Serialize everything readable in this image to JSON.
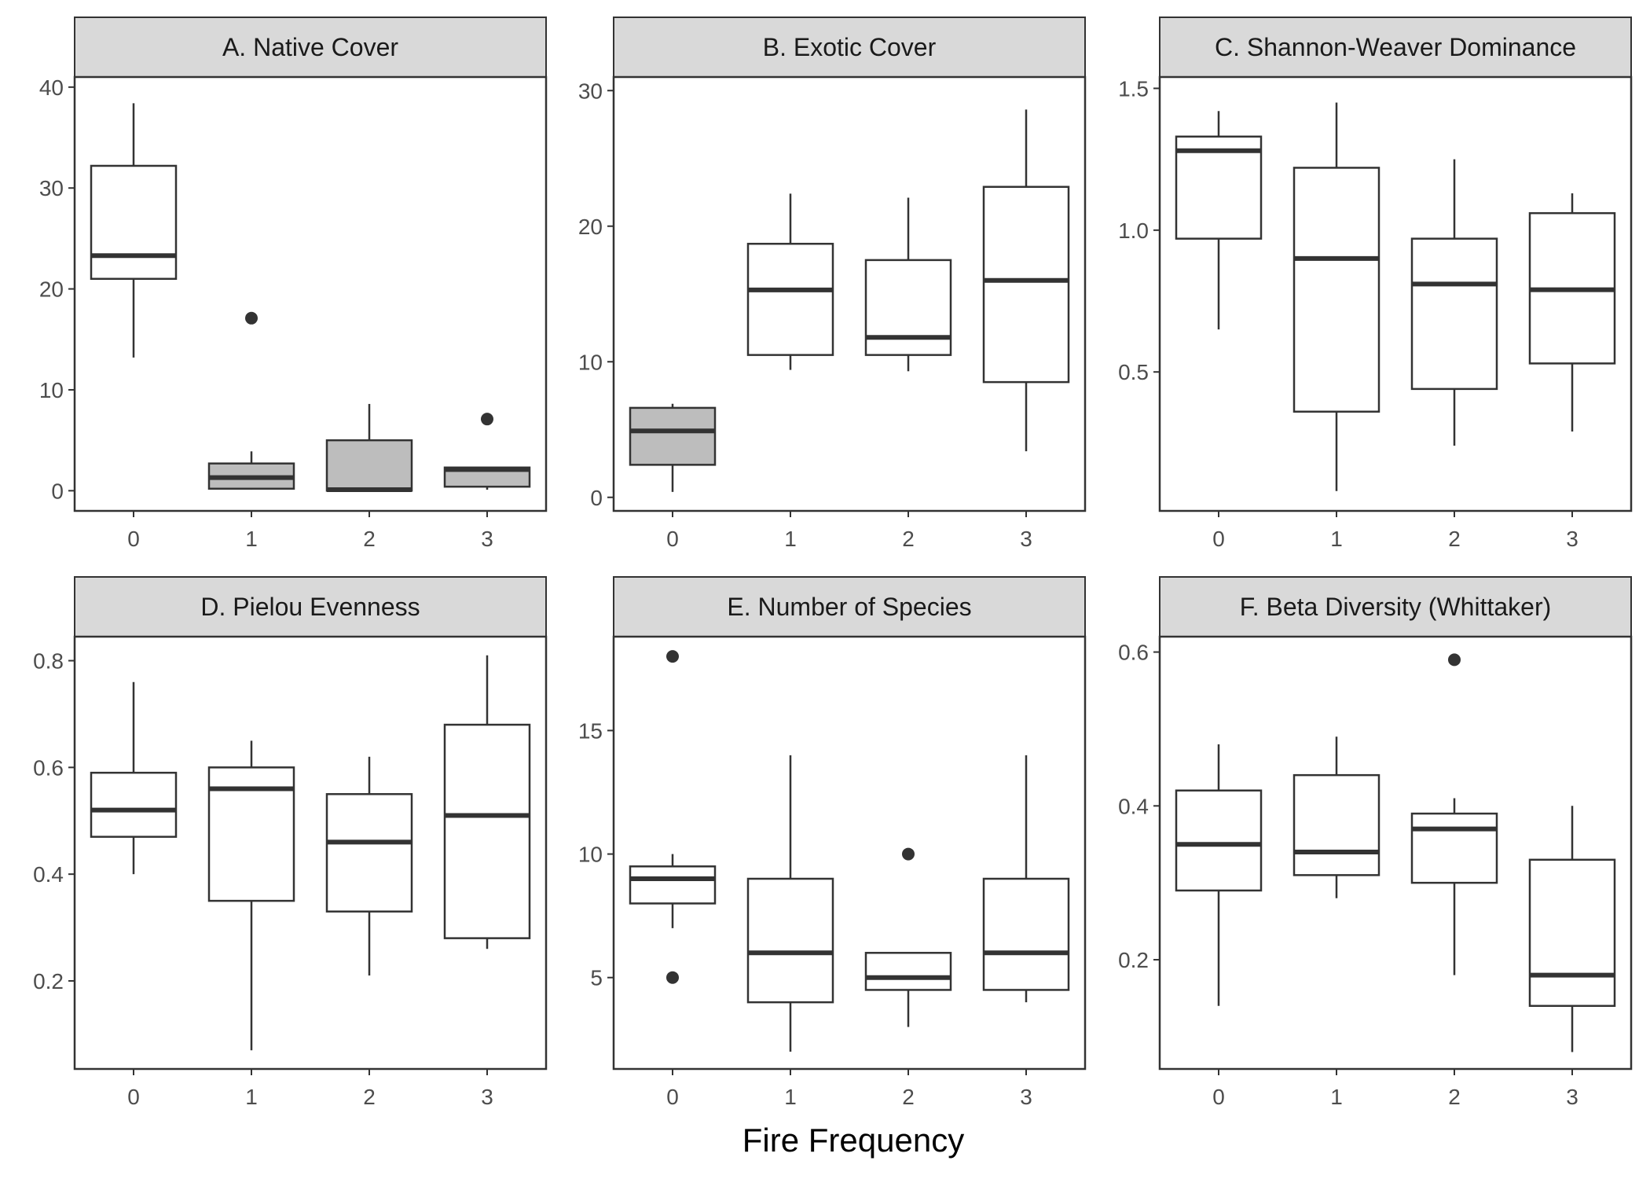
{
  "chart_data": {
    "type": "boxplot",
    "xlabel": "Fire Frequency",
    "ylabel": "",
    "categories": [
      "0",
      "1",
      "2",
      "3"
    ],
    "panels": [
      {
        "title": "A. Native Cover",
        "ylim": [
          -2,
          41
        ],
        "yticks": [
          0,
          10,
          20,
          30,
          40
        ],
        "ytick_labels": [
          "0",
          "10",
          "20",
          "30",
          "40"
        ],
        "boxes": [
          {
            "x": "0",
            "min": 13.2,
            "q1": 21.0,
            "median": 23.3,
            "q3": 32.2,
            "max": 38.4,
            "outliers": [],
            "fill": "#ffffff"
          },
          {
            "x": "1",
            "min": 0.1,
            "q1": 0.2,
            "median": 1.3,
            "q3": 2.7,
            "max": 3.9,
            "outliers": [
              17.1
            ],
            "fill": "#bdbdbd"
          },
          {
            "x": "2",
            "min": 0.0,
            "q1": 0.0,
            "median": 0.1,
            "q3": 5.0,
            "max": 8.6,
            "outliers": [],
            "fill": "#bdbdbd"
          },
          {
            "x": "3",
            "min": 0.1,
            "q1": 0.4,
            "median": 2.1,
            "q3": 2.3,
            "max": 2.3,
            "outliers": [
              7.1
            ],
            "fill": "#bdbdbd"
          }
        ]
      },
      {
        "title": "B. Exotic Cover",
        "ylim": [
          -1,
          31
        ],
        "yticks": [
          0,
          10,
          20,
          30
        ],
        "ytick_labels": [
          "0",
          "10",
          "20",
          "30"
        ],
        "boxes": [
          {
            "x": "0",
            "min": 0.4,
            "q1": 2.4,
            "median": 4.9,
            "q3": 6.6,
            "max": 6.9,
            "outliers": [],
            "fill": "#bdbdbd"
          },
          {
            "x": "1",
            "min": 9.4,
            "q1": 10.5,
            "median": 15.3,
            "q3": 18.7,
            "max": 22.4,
            "outliers": [],
            "fill": "#ffffff"
          },
          {
            "x": "2",
            "min": 9.3,
            "q1": 10.5,
            "median": 11.8,
            "q3": 17.5,
            "max": 22.1,
            "outliers": [],
            "fill": "#ffffff"
          },
          {
            "x": "3",
            "min": 3.4,
            "q1": 8.5,
            "median": 16.0,
            "q3": 22.9,
            "max": 28.6,
            "outliers": [],
            "fill": "#ffffff"
          }
        ]
      },
      {
        "title": "C. Shannon-Weaver Dominance",
        "ylim": [
          0.01,
          1.54
        ],
        "yticks": [
          0.5,
          1.0,
          1.5
        ],
        "ytick_labels": [
          "0.5",
          "1.0",
          "1.5"
        ],
        "boxes": [
          {
            "x": "0",
            "min": 0.65,
            "q1": 0.97,
            "median": 1.28,
            "q3": 1.33,
            "max": 1.42,
            "outliers": [],
            "fill": "#ffffff"
          },
          {
            "x": "1",
            "min": 0.08,
            "q1": 0.36,
            "median": 0.9,
            "q3": 1.22,
            "max": 1.45,
            "outliers": [],
            "fill": "#ffffff"
          },
          {
            "x": "2",
            "min": 0.24,
            "q1": 0.44,
            "median": 0.81,
            "q3": 0.97,
            "max": 1.25,
            "outliers": [],
            "fill": "#ffffff"
          },
          {
            "x": "3",
            "min": 0.29,
            "q1": 0.53,
            "median": 0.79,
            "q3": 1.06,
            "max": 1.13,
            "outliers": [],
            "fill": "#ffffff"
          }
        ]
      },
      {
        "title": "D. Pielou Evenness",
        "ylim": [
          0.035,
          0.845
        ],
        "yticks": [
          0.2,
          0.4,
          0.6,
          0.8
        ],
        "ytick_labels": [
          "0.2",
          "0.4",
          "0.6",
          "0.8"
        ],
        "boxes": [
          {
            "x": "0",
            "min": 0.4,
            "q1": 0.47,
            "median": 0.52,
            "q3": 0.59,
            "max": 0.76,
            "outliers": [],
            "fill": "#ffffff"
          },
          {
            "x": "1",
            "min": 0.07,
            "q1": 0.35,
            "median": 0.56,
            "q3": 0.6,
            "max": 0.65,
            "outliers": [],
            "fill": "#ffffff"
          },
          {
            "x": "2",
            "min": 0.21,
            "q1": 0.33,
            "median": 0.46,
            "q3": 0.55,
            "max": 0.62,
            "outliers": [],
            "fill": "#ffffff"
          },
          {
            "x": "3",
            "min": 0.26,
            "q1": 0.28,
            "median": 0.51,
            "q3": 0.68,
            "max": 0.81,
            "outliers": [],
            "fill": "#ffffff"
          }
        ]
      },
      {
        "title": "E. Number of Species",
        "ylim": [
          1.3,
          18.8
        ],
        "yticks": [
          5,
          10,
          15
        ],
        "ytick_labels": [
          "5",
          "10",
          "15"
        ],
        "boxes": [
          {
            "x": "0",
            "min": 7,
            "q1": 8,
            "median": 9,
            "q3": 9.5,
            "max": 10,
            "outliers": [
              18,
              5
            ],
            "fill": "#ffffff"
          },
          {
            "x": "1",
            "min": 2,
            "q1": 4,
            "median": 6,
            "q3": 9,
            "max": 14,
            "outliers": [],
            "fill": "#ffffff"
          },
          {
            "x": "2",
            "min": 3,
            "q1": 4.5,
            "median": 5,
            "q3": 6,
            "max": 6,
            "outliers": [
              10
            ],
            "fill": "#ffffff"
          },
          {
            "x": "3",
            "min": 4,
            "q1": 4.5,
            "median": 6,
            "q3": 9,
            "max": 14,
            "outliers": [],
            "fill": "#ffffff"
          }
        ]
      },
      {
        "title": "F. Beta Diversity (Whittaker)",
        "ylim": [
          0.058,
          0.62
        ],
        "yticks": [
          0.2,
          0.4,
          0.6
        ],
        "ytick_labels": [
          "0.2",
          "0.4",
          "0.6"
        ],
        "boxes": [
          {
            "x": "0",
            "min": 0.14,
            "q1": 0.29,
            "median": 0.35,
            "q3": 0.42,
            "max": 0.48,
            "outliers": [],
            "fill": "#ffffff"
          },
          {
            "x": "1",
            "min": 0.28,
            "q1": 0.31,
            "median": 0.34,
            "q3": 0.44,
            "max": 0.49,
            "outliers": [],
            "fill": "#ffffff"
          },
          {
            "x": "2",
            "min": 0.18,
            "q1": 0.3,
            "median": 0.37,
            "q3": 0.39,
            "max": 0.41,
            "outliers": [
              0.59
            ],
            "fill": "#ffffff"
          },
          {
            "x": "3",
            "min": 0.08,
            "q1": 0.14,
            "median": 0.18,
            "q3": 0.33,
            "max": 0.4,
            "outliers": [],
            "fill": "#ffffff"
          }
        ]
      }
    ]
  },
  "colors": {
    "strip_fill": "#d9d9d9",
    "strip_border": "#333333",
    "box_line": "#333333",
    "box_fill_default": "#ffffff",
    "box_fill_shaded": "#bdbdbd",
    "axis": "#333333",
    "tick_text": "#4d4d4d",
    "outlier": "#333333"
  }
}
